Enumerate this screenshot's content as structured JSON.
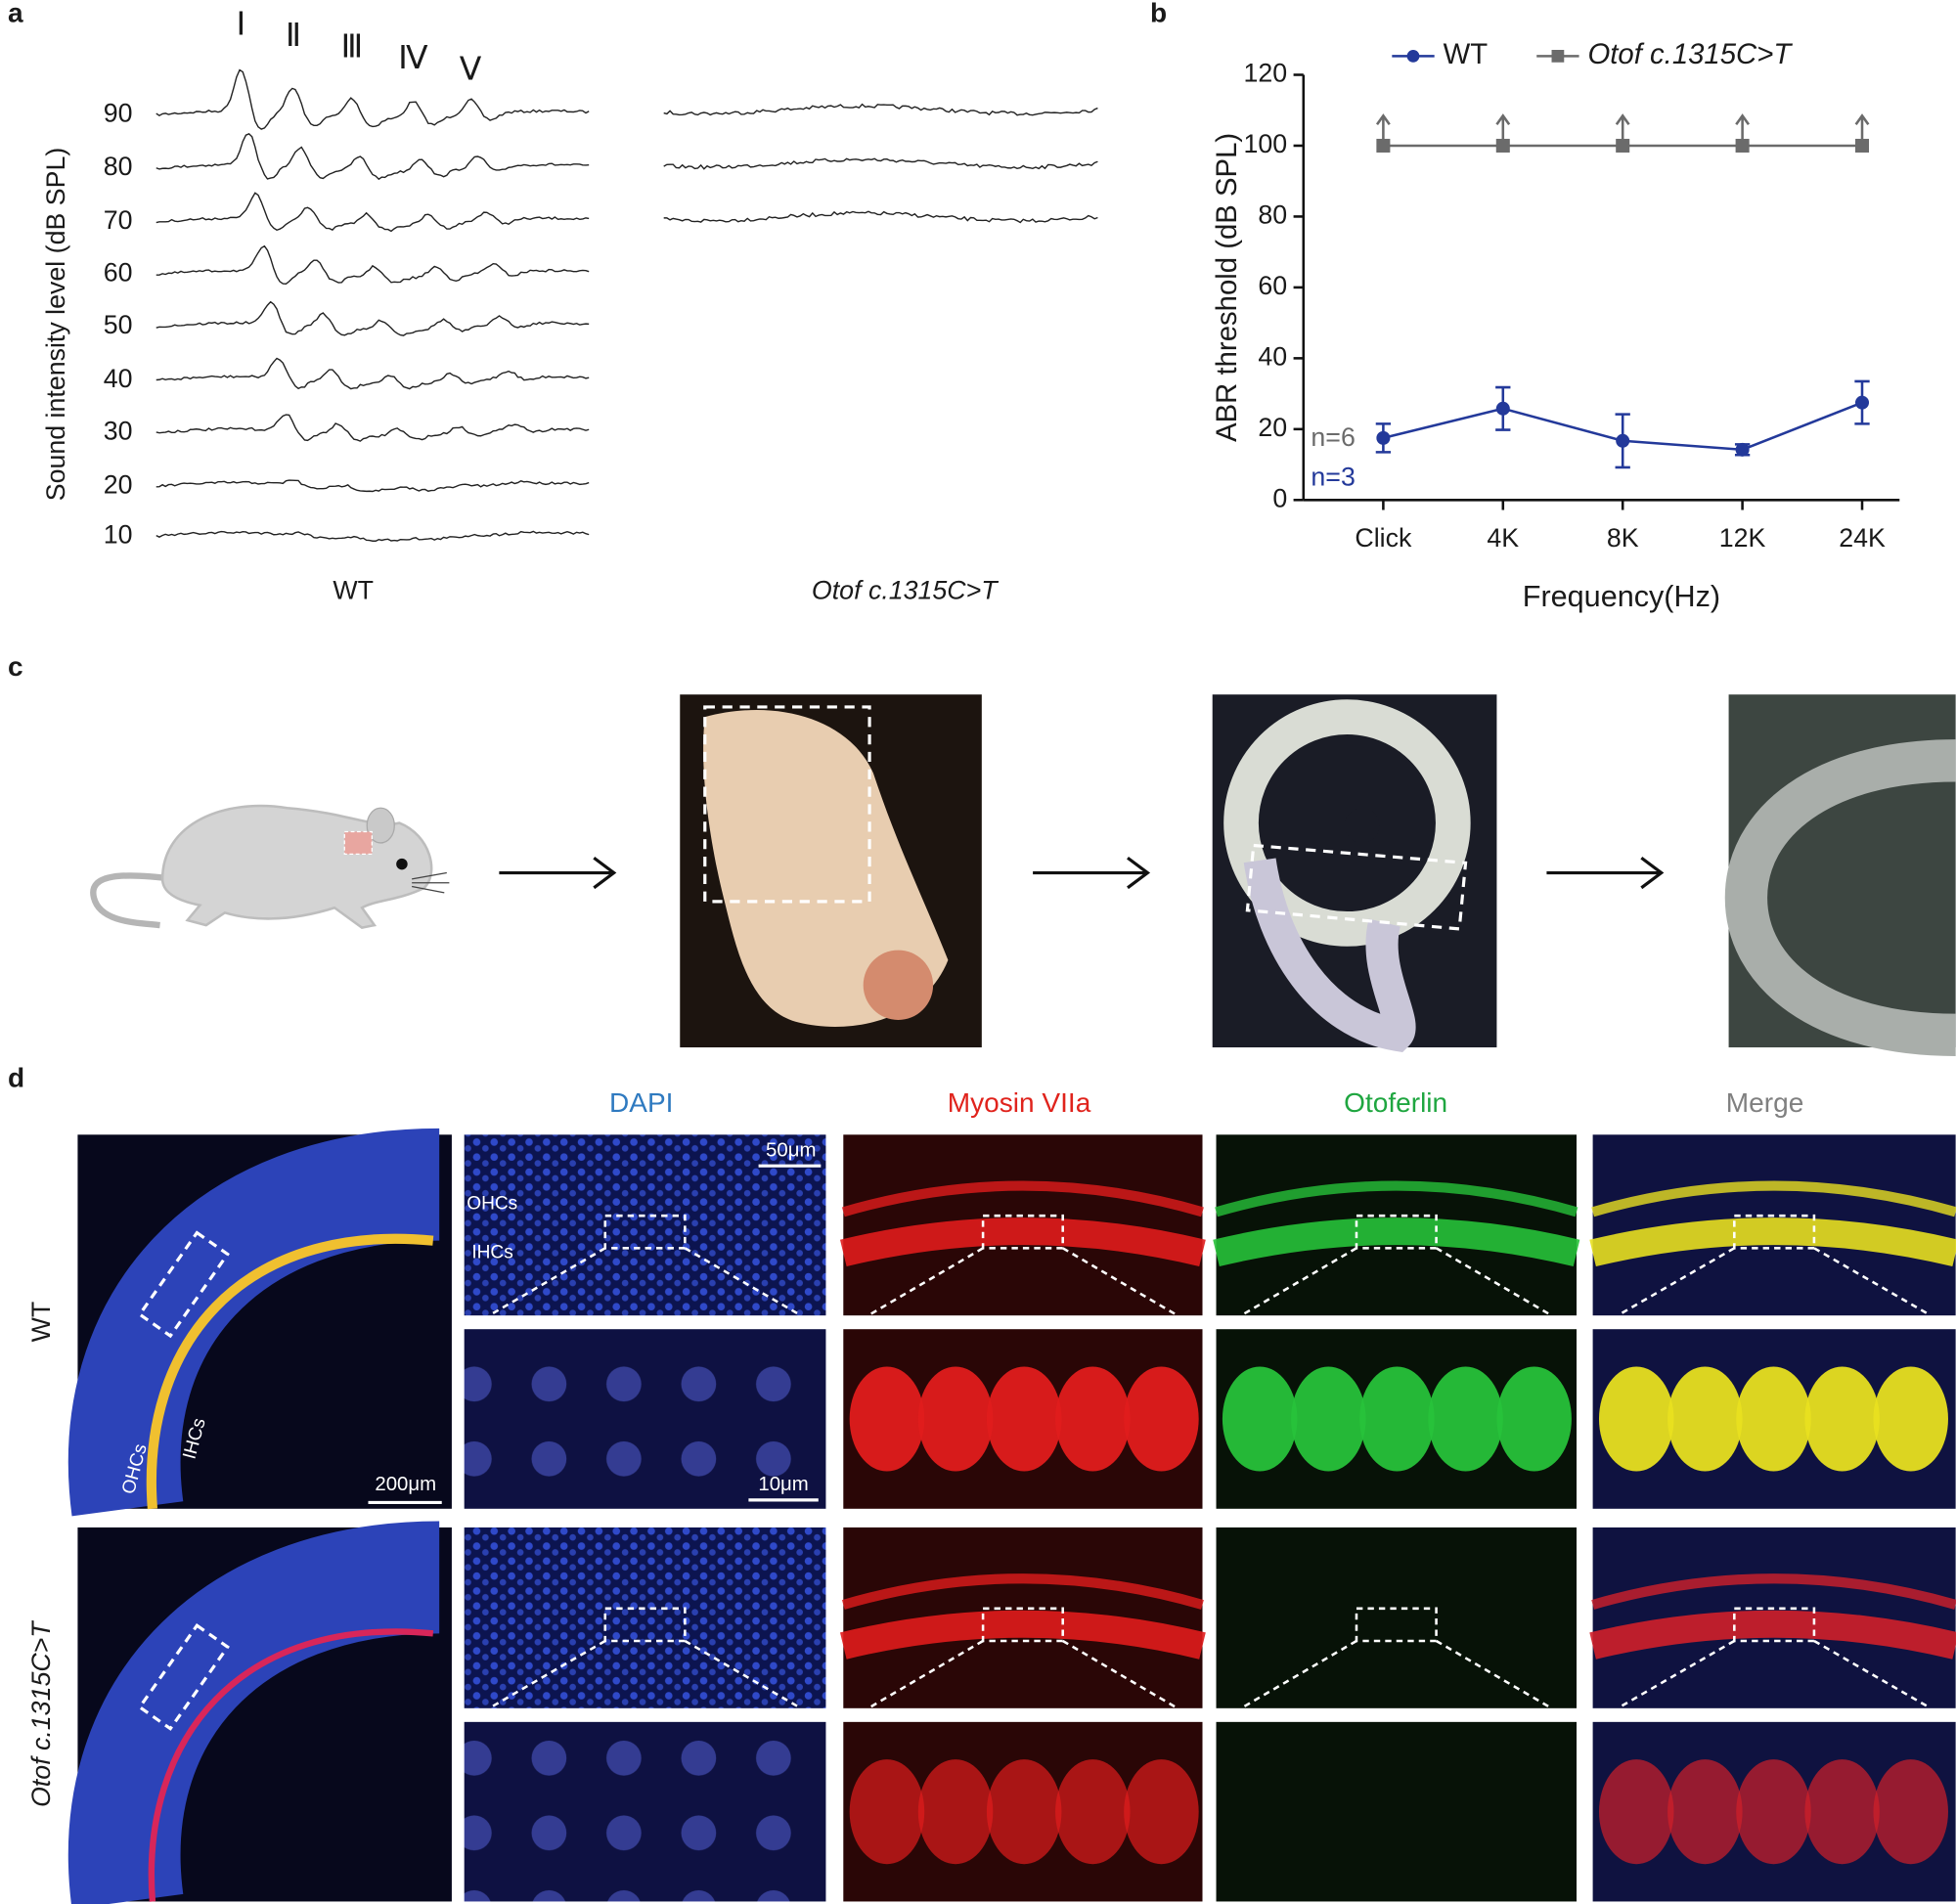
{
  "panel_labels": [
    "a",
    "b",
    "c",
    "d"
  ],
  "panel_a": {
    "wave_labels": [
      "Ⅰ",
      "Ⅱ",
      "Ⅲ",
      "Ⅳ",
      "Ⅴ"
    ],
    "y_label": "Sound intensity level (dB SPL)",
    "levels": [
      90,
      80,
      70,
      60,
      50,
      40,
      30,
      20,
      10
    ],
    "groups": [
      "WT",
      "Otof c.1315C>T"
    ]
  },
  "chart_data": {
    "type": "line",
    "y_label": "ABR threshold (dB SPL)",
    "x_label": "Frequency(Hz)",
    "categories": [
      "Click",
      "4K",
      "8K",
      "12K",
      "24K"
    ],
    "series": [
      {
        "name": "WT",
        "color": "#23399a",
        "values": [
          17.5,
          25.8,
          16.7,
          14.2,
          27.5
        ],
        "errors": [
          4,
          6,
          7.5,
          1.5,
          6
        ],
        "n_label": "n=3"
      },
      {
        "name": "Otof c.1315C>T",
        "color": "#6b6b6b",
        "values": [
          100,
          100,
          100,
          100,
          100
        ],
        "lower_bound": true,
        "n_label": "n=6"
      }
    ],
    "ylim": [
      0,
      120
    ],
    "yticks": [
      0,
      20,
      40,
      60,
      80,
      100,
      120
    ],
    "legend": "top"
  },
  "panel_d": {
    "channels": [
      "DAPI",
      "Myosin VIIa",
      "Otoferlin",
      "Merge"
    ],
    "channel_colors": [
      "#2f7ac0",
      "#e0231c",
      "#1fa640",
      "#808080"
    ],
    "rows": [
      "WT",
      "Otof c.1315C>T"
    ],
    "cell_labels": [
      "OHCs",
      "IHCs"
    ],
    "scale_bars": [
      "200μm",
      "50μm",
      "10μm"
    ]
  }
}
